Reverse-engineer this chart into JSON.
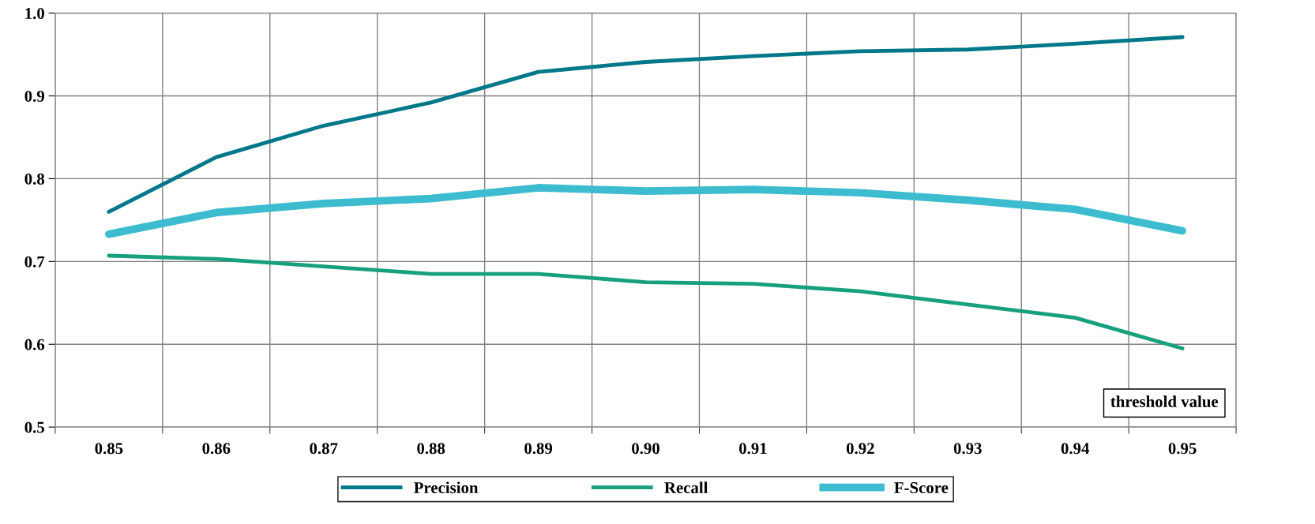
{
  "chart_data": {
    "type": "line",
    "xlabel": "threshold value",
    "categories": [
      "0.85",
      "0.86",
      "0.87",
      "0.88",
      "0.89",
      "0.90",
      "0.91",
      "0.92",
      "0.93",
      "0.94",
      "0.95"
    ],
    "series": [
      {
        "name": "Precision",
        "color": "#00788a",
        "values": [
          0.76,
          0.826,
          0.864,
          0.892,
          0.929,
          0.941,
          0.948,
          0.954,
          0.956,
          0.963,
          0.971
        ]
      },
      {
        "name": "Recall",
        "color": "#17a07e",
        "values": [
          0.707,
          0.703,
          0.694,
          0.685,
          0.685,
          0.675,
          0.673,
          0.664,
          0.648,
          0.632,
          0.595
        ]
      },
      {
        "name": "F-Score",
        "color": "#3dbcd0",
        "values": [
          0.733,
          0.759,
          0.77,
          0.776,
          0.789,
          0.785,
          0.787,
          0.783,
          0.774,
          0.763,
          0.737
        ]
      }
    ],
    "ylim": [
      0.5,
      1.0
    ],
    "yticks": [
      {
        "value": 0.5,
        "label": "0.5"
      },
      {
        "value": 0.6,
        "label": "0.6"
      },
      {
        "value": 0.7,
        "label": "0.7"
      },
      {
        "value": 0.8,
        "label": "0.8"
      },
      {
        "value": 0.9,
        "label": "0.9"
      },
      {
        "value": 1.0,
        "label": "1.0"
      }
    ],
    "grid": true,
    "legend": "bottom",
    "marker": "none",
    "line_style": "solid"
  }
}
